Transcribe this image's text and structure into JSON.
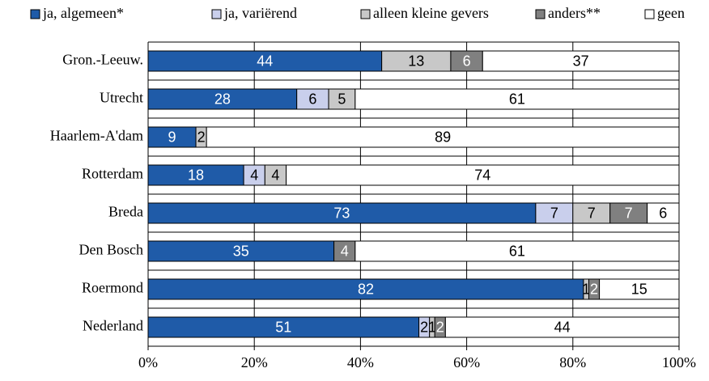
{
  "chart_data": {
    "type": "stacked-barh",
    "categories": [
      "Gron.-Leeuw.",
      "Utrecht",
      "Haarlem-A'dam",
      "Rotterdam",
      "Breda",
      "Den Bosch",
      "Roermond",
      "Nederland"
    ],
    "series": [
      {
        "name": "ja, algemeen*",
        "color": "#1f5ba8",
        "values": [
          44,
          28,
          9,
          18,
          73,
          35,
          82,
          51
        ]
      },
      {
        "name": "ja, variërend",
        "color": "#c9cfec",
        "values": [
          null,
          6,
          null,
          4,
          7,
          null,
          null,
          2
        ]
      },
      {
        "name": "alleen kleine gevers",
        "color": "#c8c8c8",
        "values": [
          13,
          5,
          2,
          4,
          7,
          null,
          1,
          1
        ]
      },
      {
        "name": "anders**",
        "color": "#808080",
        "values": [
          6,
          null,
          null,
          null,
          7,
          4,
          2,
          2
        ]
      },
      {
        "name": "geen",
        "color": "#ffffff",
        "values": [
          37,
          61,
          89,
          74,
          6,
          61,
          15,
          44
        ]
      }
    ],
    "xlim": [
      0,
      100
    ],
    "xticks": [
      {
        "value": 0,
        "label": "0%"
      },
      {
        "value": 20,
        "label": "20%"
      },
      {
        "value": 40,
        "label": "40%"
      },
      {
        "value": 60,
        "label": "60%"
      },
      {
        "value": 80,
        "label": "80%"
      },
      {
        "value": 100,
        "label": "100%"
      }
    ],
    "grid": true,
    "legend": "top"
  }
}
